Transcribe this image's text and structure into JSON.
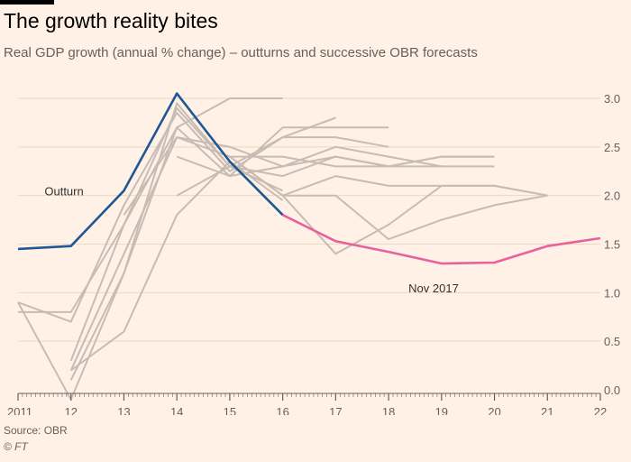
{
  "header": {
    "title": "The growth reality bites",
    "subtitle": "Real GDP growth (annual % change) – outturns and successive OBR forecasts"
  },
  "footer": {
    "source": "Source: OBR",
    "credit": "© FT"
  },
  "colors": {
    "background": "#fff1e5",
    "outturn": "#1f5694",
    "nov2017": "#e8619c",
    "forecasts": "#c7bcb4",
    "grid": "#e9d8c5",
    "axis": "#66605c"
  },
  "chart_data": {
    "type": "line",
    "title": "The growth reality bites",
    "subtitle": "Real GDP growth (annual % change) – outturns and successive OBR forecasts",
    "xlabel": "",
    "ylabel": "",
    "xlim": [
      2011,
      2022
    ],
    "ylim": [
      0,
      3.0
    ],
    "x_tick_labels": [
      "2011",
      "12",
      "13",
      "14",
      "15",
      "16",
      "17",
      "18",
      "19",
      "20",
      "21",
      "22"
    ],
    "y_ticks": [
      0.0,
      0.5,
      1.0,
      1.5,
      2.0,
      2.5,
      3.0
    ],
    "y_tick_labels": [
      "0.0",
      "0.5",
      "1.0",
      "1.5",
      "2.0",
      "2.5",
      "3.0"
    ],
    "y_axis_side": "right",
    "grid": true,
    "annotations": [
      {
        "text": "Outturn",
        "series": "outturn"
      },
      {
        "text": "Nov 2017",
        "series": "nov2017"
      }
    ],
    "series": [
      {
        "id": "outturn",
        "role": "outturn",
        "x": [
          2011,
          2012,
          2013,
          2014,
          2015,
          2016
        ],
        "y": [
          1.45,
          1.48,
          2.05,
          3.05,
          2.35,
          1.8
        ]
      },
      {
        "id": "nov2017",
        "role": "nov2017",
        "x": [
          2016,
          2017,
          2018,
          2019,
          2020,
          2021,
          2022
        ],
        "y": [
          1.8,
          1.53,
          1.42,
          1.3,
          1.31,
          1.48,
          1.56
        ]
      },
      {
        "id": "f1",
        "role": "forecast",
        "x": [
          2011,
          2012,
          2013,
          2014,
          2015
        ],
        "y": [
          0.8,
          0.8,
          1.7,
          2.7,
          3.0
        ]
      },
      {
        "id": "f2",
        "role": "forecast",
        "x": [
          2015,
          2016
        ],
        "y": [
          3.0,
          3.0
        ]
      },
      {
        "id": "f3",
        "role": "forecast",
        "x": [
          2012,
          2013,
          2014,
          2015,
          2016,
          2017
        ],
        "y": [
          0.3,
          1.7,
          2.9,
          2.3,
          2.6,
          2.8
        ]
      },
      {
        "id": "f4",
        "role": "forecast",
        "x": [
          2012,
          2013,
          2014,
          2015,
          2016,
          2017,
          2018
        ],
        "y": [
          0.1,
          1.2,
          2.7,
          2.2,
          2.7,
          2.7,
          2.7
        ]
      },
      {
        "id": "f5",
        "role": "forecast",
        "x": [
          2011,
          2012,
          2013,
          2014,
          2015,
          2016,
          2017,
          2018
        ],
        "y": [
          0.9,
          0.7,
          1.9,
          2.85,
          2.25,
          2.6,
          2.6,
          2.5
        ]
      },
      {
        "id": "f6",
        "role": "forecast",
        "x": [
          2012,
          2013,
          2014,
          2015,
          2016,
          2017,
          2018,
          2019
        ],
        "y": [
          0.2,
          1.4,
          2.6,
          2.5,
          2.3,
          2.5,
          2.4,
          2.3
        ]
      },
      {
        "id": "f7",
        "role": "forecast",
        "x": [
          2013,
          2014,
          2015,
          2016,
          2017,
          2018,
          2019,
          2020
        ],
        "y": [
          1.8,
          2.6,
          2.4,
          2.4,
          2.3,
          2.3,
          2.3,
          2.3
        ]
      },
      {
        "id": "f8",
        "role": "forecast",
        "x": [
          2014,
          2015,
          2016,
          2017,
          2018,
          2019,
          2020
        ],
        "y": [
          2.0,
          2.3,
          2.2,
          2.4,
          2.3,
          2.4,
          2.4
        ]
      },
      {
        "id": "f9",
        "role": "forecast",
        "x": [
          2014,
          2015,
          2016,
          2017,
          2018,
          2019,
          2020
        ],
        "y": [
          2.4,
          2.2,
          2.3,
          2.4,
          2.3,
          2.4,
          2.4
        ]
      },
      {
        "id": "f10",
        "role": "forecast",
        "x": [
          2015,
          2016,
          2017,
          2018,
          2019,
          2020,
          2021
        ],
        "y": [
          2.4,
          2.0,
          2.2,
          2.1,
          2.1,
          2.1,
          2.0
        ]
      },
      {
        "id": "f11",
        "role": "forecast",
        "x": [
          2015,
          2016,
          2017,
          2018,
          2019,
          2020,
          2021
        ],
        "y": [
          2.4,
          2.0,
          1.4,
          1.7,
          2.1,
          2.1,
          2.0
        ]
      },
      {
        "id": "f12",
        "role": "forecast",
        "x": [
          2016,
          2017,
          2018,
          2019,
          2020,
          2021
        ],
        "y": [
          2.0,
          2.0,
          1.55,
          1.75,
          1.9,
          2.0
        ]
      },
      {
        "id": "f13",
        "role": "forecast",
        "x": [
          2011,
          2012,
          2013,
          2014,
          2015,
          2016
        ],
        "y": [
          0.9,
          -0.1,
          1.2,
          2.95,
          2.3,
          2.05
        ]
      },
      {
        "id": "f14",
        "role": "forecast",
        "x": [
          2012,
          2013,
          2014,
          2015,
          2016
        ],
        "y": [
          0.2,
          0.6,
          1.8,
          2.35,
          1.95
        ]
      }
    ]
  }
}
